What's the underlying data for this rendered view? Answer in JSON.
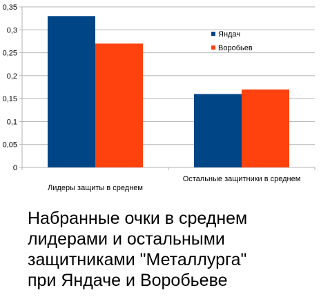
{
  "colors": {
    "series_1": "#004586",
    "series_2": "#ff420e",
    "grid": "#b3b3b3",
    "axis": "#b3b3b3",
    "text": "#000000"
  },
  "chart_data": {
    "type": "bar",
    "categories": [
      "Лидеры защиты в среднем",
      "Остальные защитники в среднем"
    ],
    "series": [
      {
        "name": "Яндач",
        "values": [
          0.33,
          0.16
        ]
      },
      {
        "name": "Воробьев",
        "values": [
          0.27,
          0.17
        ]
      }
    ],
    "ylim": [
      0,
      0.35
    ],
    "ytick_values": [
      0,
      0.05,
      0.1,
      0.15,
      0.2,
      0.25,
      0.3,
      0.35
    ],
    "ytick_labels": [
      "0",
      "0,05",
      "0,1",
      "0,15",
      "0,2",
      "0,25",
      "0,3",
      "0,35"
    ],
    "grid": true,
    "legend_position": "right",
    "title": "",
    "xlabel": "",
    "ylabel": ""
  },
  "caption": {
    "lines": [
      "Набранные очки в среднем",
      "лидерами и остальными",
      "защитниками \"Металлурга\"",
      "при Яндаче и Воробьеве"
    ]
  }
}
